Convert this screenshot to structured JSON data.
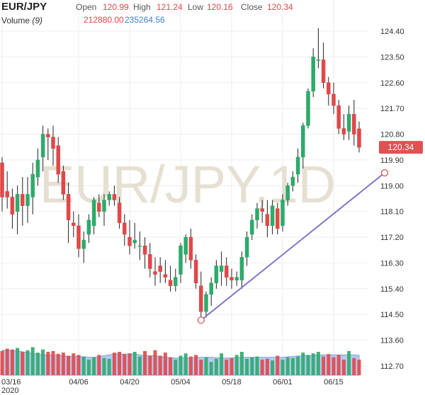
{
  "header": {
    "symbol": "EUR/JPY",
    "open_label": "Open",
    "open_value": "120.99",
    "high_label": "High",
    "high_value": "121.24",
    "low_label": "Low",
    "low_value": "120.16",
    "close_label": "Close",
    "close_value": "120.34",
    "volume_label": "Volume",
    "volume_period": "(9)",
    "volume_value": "212880.00",
    "volume_ma_value": "235264.56"
  },
  "watermark": "EUR/JPY,1D",
  "price_tag": "120.34",
  "colors": {
    "up": "#2eaa6a",
    "down": "#e04848",
    "volume_area": "#9db8ec",
    "trendline": "#7f79c6",
    "price_tag_bg": "#e05252",
    "value_red": "#e04848",
    "value_blue": "#3d7fd9"
  },
  "chart_data": {
    "type": "candlestick",
    "y_ticks": [
      "124.40",
      "123.50",
      "122.60",
      "121.70",
      "120.80",
      "119.90",
      "119.00",
      "118.10",
      "117.20",
      "116.30",
      "115.40",
      "114.50",
      "113.60",
      "112.70"
    ],
    "ylim": [
      112.7,
      124.4
    ],
    "x_tick_labels": [
      "03/16",
      "04/06",
      "04/20",
      "05/04",
      "05/18",
      "06/01",
      "06/15"
    ],
    "x_tick_year": "2020",
    "x_tick_positions": [
      0,
      15,
      25,
      35,
      45,
      55,
      65
    ],
    "grid": true,
    "volume_scale_note": "volume shown as relative height only; no printed volume axis",
    "series": [
      {
        "name": "EUR/JPY",
        "candles": [
          [
            119.8,
            120.0,
            118.1,
            118.6
          ],
          [
            118.8,
            119.5,
            118.2,
            118.6
          ],
          [
            118.6,
            118.9,
            117.5,
            118.0
          ],
          [
            118.1,
            119.0,
            117.3,
            118.7
          ],
          [
            118.7,
            119.3,
            117.6,
            118.3
          ],
          [
            118.3,
            119.3,
            117.7,
            118.7
          ],
          [
            118.6,
            119.8,
            118.0,
            119.4
          ],
          [
            119.3,
            120.3,
            119.0,
            119.9
          ],
          [
            120.0,
            121.1,
            119.5,
            120.8
          ],
          [
            120.8,
            121.0,
            119.9,
            120.7
          ],
          [
            120.7,
            121.1,
            119.7,
            120.3
          ],
          [
            120.4,
            120.7,
            119.1,
            119.4
          ],
          [
            119.5,
            119.7,
            118.5,
            118.7
          ],
          [
            118.7,
            119.1,
            117.0,
            117.8
          ],
          [
            117.7,
            118.1,
            117.2,
            117.6
          ],
          [
            117.6,
            118.0,
            116.5,
            116.8
          ],
          [
            116.8,
            117.4,
            116.3,
            117.1
          ],
          [
            117.3,
            118.0,
            117.0,
            117.8
          ],
          [
            117.6,
            118.6,
            117.3,
            118.5
          ],
          [
            118.4,
            118.7,
            117.9,
            118.1
          ],
          [
            118.1,
            118.7,
            117.6,
            118.5
          ],
          [
            118.5,
            118.8,
            118.3,
            118.7
          ],
          [
            118.7,
            119.0,
            118.3,
            118.5
          ],
          [
            118.4,
            118.6,
            117.5,
            117.7
          ],
          [
            117.7,
            118.0,
            116.9,
            117.3
          ],
          [
            117.2,
            117.8,
            116.6,
            116.9
          ],
          [
            117.0,
            117.7,
            116.8,
            117.1
          ],
          [
            116.9,
            117.4,
            116.4,
            116.9
          ],
          [
            116.9,
            117.2,
            116.1,
            116.6
          ],
          [
            116.6,
            117.0,
            115.8,
            116.1
          ],
          [
            116.0,
            116.5,
            115.5,
            115.9
          ],
          [
            116.2,
            116.5,
            115.6,
            116.0
          ],
          [
            115.9,
            116.4,
            115.6,
            115.8
          ],
          [
            115.7,
            116.2,
            115.3,
            115.5
          ],
          [
            115.5,
            116.1,
            115.3,
            115.8
          ],
          [
            115.9,
            117.0,
            115.6,
            116.9
          ],
          [
            116.6,
            117.3,
            116.3,
            117.2
          ],
          [
            117.2,
            117.5,
            116.1,
            116.4
          ],
          [
            116.4,
            116.6,
            115.4,
            115.6
          ],
          [
            115.5,
            116.0,
            114.3,
            114.6
          ],
          [
            114.6,
            115.3,
            114.4,
            115.2
          ],
          [
            115.2,
            115.8,
            114.8,
            115.6
          ],
          [
            115.6,
            116.4,
            115.4,
            116.2
          ],
          [
            116.0,
            116.7,
            115.5,
            116.2
          ],
          [
            116.2,
            116.5,
            115.5,
            115.8
          ],
          [
            115.8,
            116.1,
            115.4,
            115.7
          ],
          [
            115.7,
            116.0,
            115.5,
            115.8
          ],
          [
            115.7,
            116.7,
            115.4,
            116.5
          ],
          [
            116.5,
            117.4,
            116.2,
            117.2
          ],
          [
            117.3,
            118.0,
            117.1,
            117.8
          ],
          [
            117.8,
            118.4,
            117.5,
            118.2
          ],
          [
            118.2,
            118.5,
            117.7,
            118.1
          ],
          [
            118.0,
            118.5,
            117.2,
            117.6
          ],
          [
            117.6,
            118.5,
            117.3,
            118.3
          ],
          [
            118.2,
            118.4,
            117.3,
            117.5
          ],
          [
            117.6,
            118.7,
            117.4,
            118.5
          ],
          [
            118.5,
            119.1,
            118.3,
            119.0
          ],
          [
            119.0,
            119.5,
            118.8,
            119.3
          ],
          [
            119.4,
            120.3,
            119.1,
            120.0
          ],
          [
            120.0,
            121.2,
            119.6,
            121.1
          ],
          [
            121.1,
            122.4,
            121.0,
            122.3
          ],
          [
            122.3,
            123.8,
            122.1,
            123.5
          ],
          [
            123.4,
            124.5,
            123.1,
            123.4
          ],
          [
            123.4,
            124.0,
            122.4,
            122.6
          ],
          [
            122.6,
            122.8,
            121.8,
            122.2
          ],
          [
            122.2,
            122.6,
            121.5,
            121.8
          ],
          [
            121.8,
            122.0,
            120.8,
            121.0
          ],
          [
            121.0,
            121.5,
            120.6,
            120.8
          ],
          [
            120.9,
            121.8,
            120.6,
            121.5
          ],
          [
            121.5,
            122.0,
            120.4,
            120.8
          ],
          [
            120.99,
            121.24,
            120.16,
            120.34
          ]
        ]
      }
    ],
    "volume": [
      0.62,
      0.68,
      0.66,
      0.7,
      0.6,
      0.64,
      0.72,
      0.58,
      0.66,
      0.6,
      0.62,
      0.55,
      0.58,
      0.5,
      0.56,
      0.52,
      0.48,
      0.4,
      0.46,
      0.52,
      0.44,
      0.42,
      0.58,
      0.6,
      0.54,
      0.56,
      0.6,
      0.48,
      0.62,
      0.5,
      0.64,
      0.5,
      0.58,
      0.46,
      0.4,
      0.5,
      0.56,
      0.48,
      0.52,
      0.4,
      0.46,
      0.34,
      0.42,
      0.56,
      0.4,
      0.44,
      0.52,
      0.6,
      0.42,
      0.46,
      0.48,
      0.4,
      0.42,
      0.38,
      0.5,
      0.4,
      0.46,
      0.44,
      0.48,
      0.58,
      0.52,
      0.56,
      0.6,
      0.48,
      0.54,
      0.46,
      0.52,
      0.4,
      0.62,
      0.44,
      0.4
    ],
    "volume_ma": [
      0.64,
      0.64,
      0.63,
      0.62,
      0.6,
      0.58,
      0.56,
      0.54,
      0.52,
      0.52,
      0.52,
      0.5,
      0.5,
      0.48,
      0.48,
      0.48,
      0.47,
      0.46,
      0.46,
      0.48,
      0.5,
      0.52,
      0.54,
      0.55,
      0.54,
      0.54,
      0.54,
      0.52,
      0.5,
      0.5,
      0.5,
      0.48,
      0.46,
      0.45,
      0.44,
      0.44,
      0.44,
      0.44,
      0.45,
      0.46,
      0.46,
      0.46,
      0.45,
      0.44,
      0.44,
      0.44,
      0.45,
      0.46,
      0.46,
      0.46,
      0.46,
      0.46,
      0.46,
      0.46,
      0.46,
      0.46,
      0.47,
      0.48,
      0.49,
      0.5,
      0.5,
      0.51,
      0.52,
      0.52,
      0.52,
      0.52,
      0.52,
      0.52,
      0.52,
      0.52,
      0.51
    ],
    "trendline": {
      "from_index": 39,
      "from_value": 114.3,
      "to_index": 75,
      "to_value": 119.45
    }
  }
}
